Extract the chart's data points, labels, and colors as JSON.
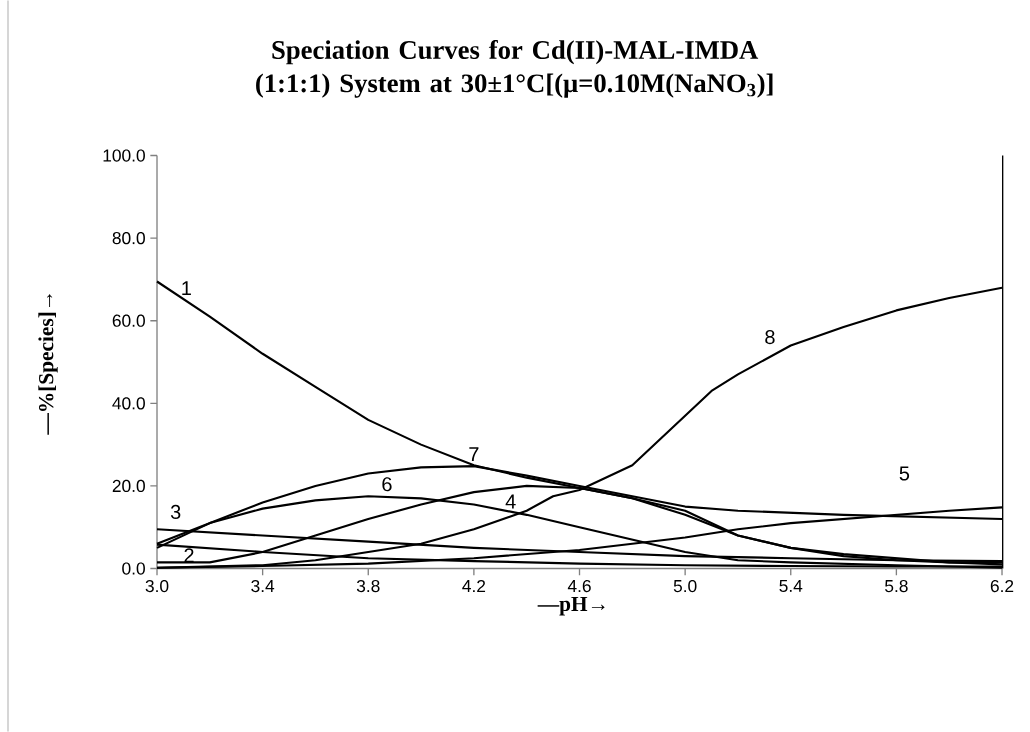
{
  "chart_data": {
    "type": "line",
    "title": "Speciation Curves for Cd(II)-MAL-IMDA (1:1:1) System at 30±1°C[(μ=0.10M(NaNO$_{3}$)]",
    "xlabel": "—pH→",
    "ylabel": "—%[Species]→",
    "xlim": [
      3.0,
      6.2
    ],
    "xticks": [
      {
        "value": 3.0,
        "label": "3.0"
      },
      {
        "value": 3.4,
        "label": "3.4"
      },
      {
        "value": 3.8,
        "label": "3.8"
      },
      {
        "value": 4.2,
        "label": "4.2"
      },
      {
        "value": 4.6,
        "label": "4.6"
      },
      {
        "value": 5.0,
        "label": "5.0"
      },
      {
        "value": 5.4,
        "label": "5.4"
      },
      {
        "value": 5.8,
        "label": "5.8"
      },
      {
        "value": 6.2,
        "label": "6.2"
      }
    ],
    "ylim": [
      0,
      100
    ],
    "yticks": [
      {
        "value": 0,
        "label": "0.0"
      },
      {
        "value": 20,
        "label": "20.0"
      },
      {
        "value": 40,
        "label": "40.0"
      },
      {
        "value": 60,
        "label": "60.0"
      },
      {
        "value": 80,
        "label": "80.0"
      },
      {
        "value": 100,
        "label": "100.0"
      }
    ],
    "series": [
      {
        "color": "#000000",
        "x": [
          3.0,
          3.2,
          3.4,
          3.6,
          3.8,
          4.0,
          4.2,
          4.4,
          4.6,
          4.8,
          5.0,
          5.2,
          5.4,
          5.6,
          5.8,
          6.0,
          6.2
        ],
        "values": [
          69.5,
          61,
          52,
          44,
          36,
          30,
          25,
          22,
          19.5,
          17,
          13,
          8,
          5,
          3,
          2,
          1.5,
          1.5
        ]
      },
      {
        "color": "#000000",
        "x": [
          3.0,
          3.4,
          3.8,
          4.2,
          4.6,
          5.0,
          5.4,
          5.8,
          6.2
        ],
        "values": [
          5.8,
          4,
          2.5,
          1.8,
          1.2,
          0.8,
          0.6,
          0.5,
          0.5
        ]
      },
      {
        "color": "#000000",
        "x": [
          3.0,
          3.4,
          3.8,
          4.2,
          4.6,
          5.0,
          5.4,
          5.8,
          6.2
        ],
        "values": [
          9.5,
          8,
          6.5,
          5,
          4,
          3,
          2.5,
          2,
          1.8
        ]
      },
      {
        "color": "#000000",
        "x": [
          3.0,
          3.2,
          3.4,
          3.6,
          3.8,
          4.0,
          4.2,
          4.4,
          4.6,
          4.8,
          5.0,
          5.1,
          5.2,
          5.4,
          5.6,
          5.8,
          6.0,
          6.2
        ],
        "values": [
          1.5,
          1.5,
          4,
          8,
          12,
          15.5,
          18.5,
          20,
          19.5,
          17,
          14,
          11,
          8,
          5,
          3.5,
          2.5,
          1.5,
          1
        ]
      },
      {
        "color": "#000000",
        "x": [
          3.0,
          3.4,
          3.8,
          4.2,
          4.6,
          4.8,
          5.0,
          5.2,
          5.4,
          5.6,
          5.8,
          6.0,
          6.2
        ],
        "values": [
          0.2,
          0.6,
          1.2,
          2.5,
          4.5,
          6,
          7.5,
          9.5,
          11,
          12,
          13,
          14,
          14.8
        ]
      },
      {
        "color": "#000000",
        "x": [
          3.0,
          3.2,
          3.4,
          3.6,
          3.8,
          4.0,
          4.2,
          4.4,
          4.6,
          4.8,
          5.0,
          5.2,
          5.4,
          5.8,
          6.2
        ],
        "values": [
          5,
          11,
          14.5,
          16.5,
          17.5,
          17,
          15.5,
          13,
          10,
          7,
          4,
          2,
          1.5,
          0.8,
          0.2
        ]
      },
      {
        "color": "#000000",
        "x": [
          3.0,
          3.2,
          3.4,
          3.6,
          3.8,
          4.0,
          4.2,
          4.4,
          4.6,
          4.8,
          5.0,
          5.1,
          5.2,
          5.6,
          6.2
        ],
        "values": [
          6,
          11,
          16,
          20,
          23,
          24.5,
          24.8,
          22.5,
          20,
          17.5,
          15,
          14.5,
          14,
          13,
          12
        ]
      },
      {
        "color": "#000000",
        "x": [
          3.0,
          3.4,
          3.6,
          3.8,
          4.0,
          4.2,
          4.4,
          4.5,
          4.6,
          4.8,
          4.9,
          5.0,
          5.1,
          5.2,
          5.4,
          5.6,
          5.8,
          6.0,
          6.2
        ],
        "values": [
          0.2,
          0.8,
          2,
          4,
          6,
          9.5,
          14,
          17.5,
          19,
          25,
          31,
          37,
          43,
          47,
          54,
          58.5,
          62.5,
          65.5,
          68
        ]
      }
    ],
    "annotations": [
      {
        "text": "1",
        "x": 3.0,
        "y": 69.5
      },
      {
        "text": "2",
        "x": 3.0,
        "y": 5.8
      },
      {
        "text": "3",
        "x": 3.0,
        "y": 9.5
      },
      {
        "text": "4",
        "x": 4.4,
        "y": 13
      },
      {
        "text": "5",
        "x": 5.8,
        "y": 13
      },
      {
        "text": "6",
        "x": 3.8,
        "y": 17.5
      },
      {
        "text": "7",
        "x": 4.2,
        "y": 24.8
      },
      {
        "text": "8",
        "x": 5.2,
        "y": 47
      }
    ]
  }
}
